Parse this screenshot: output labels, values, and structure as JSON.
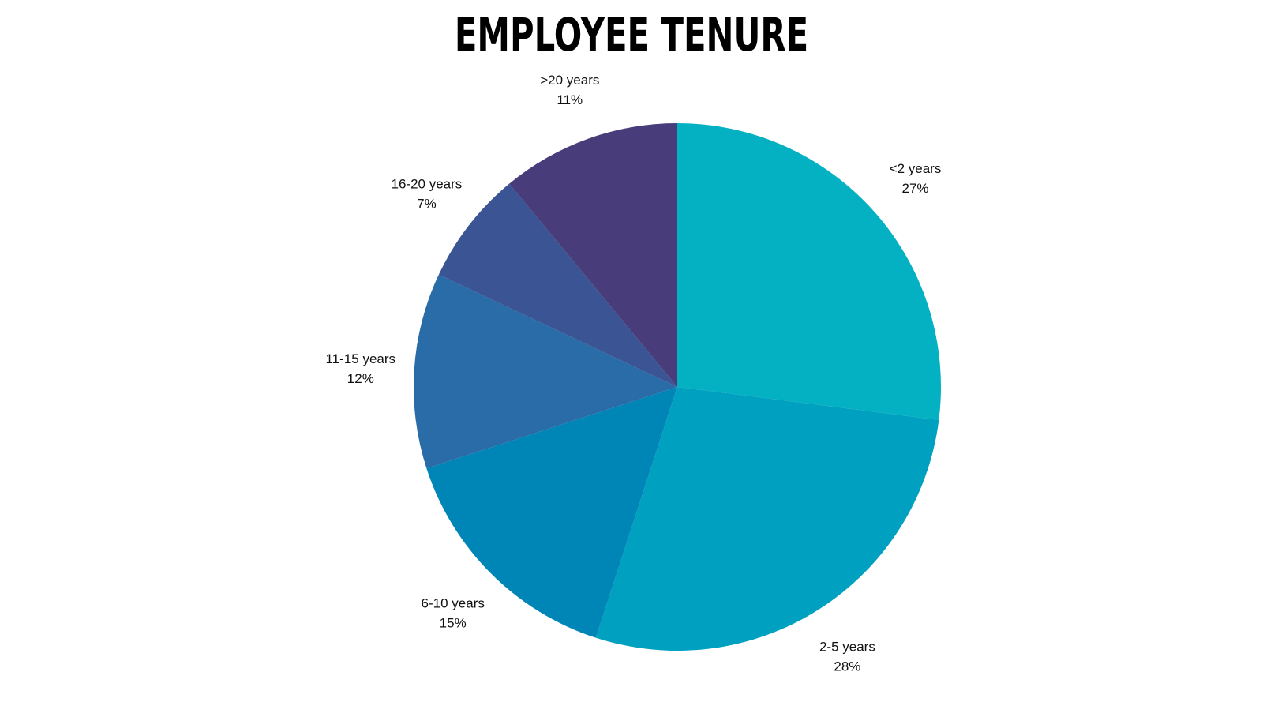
{
  "chart_data": {
    "type": "pie",
    "title": "EMPLOYEE TENURE",
    "start_angle_deg": 0,
    "direction": "clockwise",
    "legend": "none",
    "slices": [
      {
        "label": "<2 years",
        "value": 27,
        "value_label": "27%",
        "color": "#03b1c2"
      },
      {
        "label": "2-5 years",
        "value": 28,
        "value_label": "28%",
        "color": "#00a0c0"
      },
      {
        "label": "6-10 years",
        "value": 15,
        "value_label": "15%",
        "color": "#0085b7"
      },
      {
        "label": "11-15 years",
        "value": 12,
        "value_label": "12%",
        "color": "#296ca8"
      },
      {
        "label": "16-20 years",
        "value": 7,
        "value_label": "7%",
        "color": "#3b5493"
      },
      {
        "label": ">20 years",
        "value": 11,
        "value_label": "11%",
        "color": "#483c7a"
      }
    ]
  }
}
